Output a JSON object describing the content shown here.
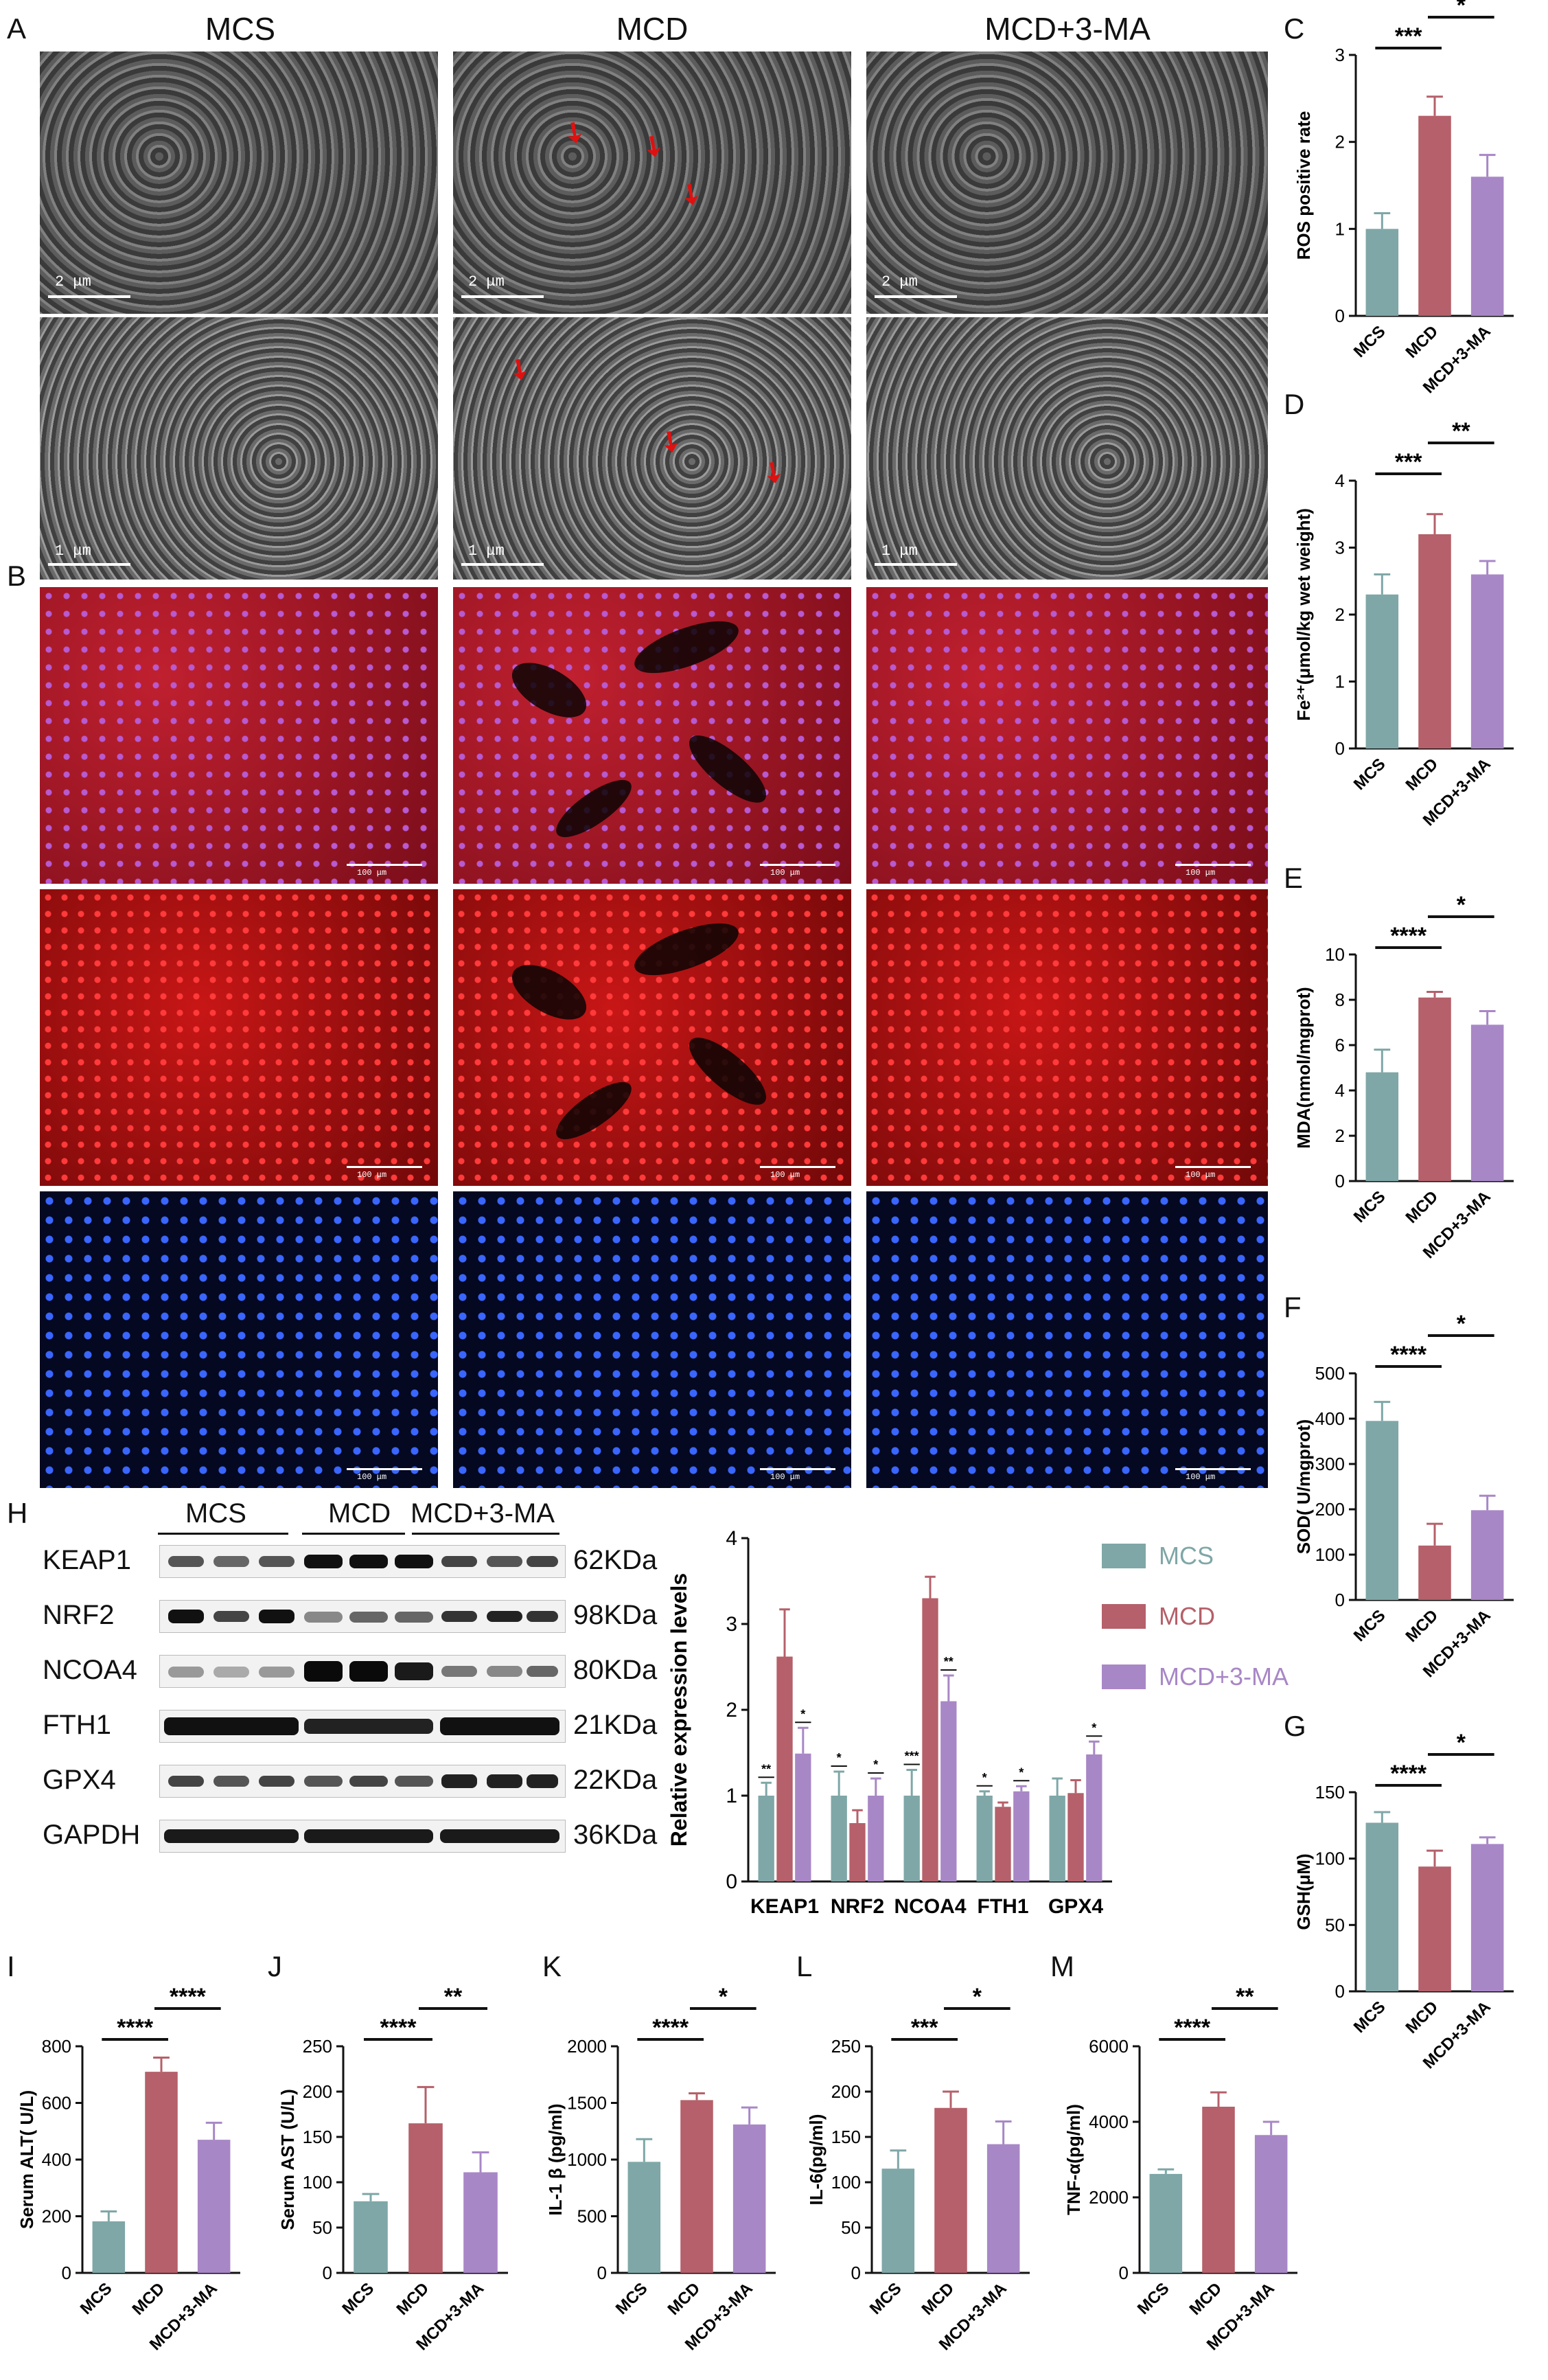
{
  "panel_letters": {
    "A": "A",
    "B": "B",
    "C": "C",
    "D": "D",
    "E": "E",
    "F": "F",
    "G": "G",
    "H": "H",
    "I": "I",
    "J": "J",
    "K": "K",
    "L": "L",
    "M": "M"
  },
  "col_headers": [
    "MCS",
    "MCD",
    "MCD+3-MA"
  ],
  "scale_labels": {
    "two_um": "2 μm",
    "one_um": "1 μm",
    "hundred_um": "100 μm"
  },
  "western": {
    "groups": [
      "MCS",
      "MCD",
      "MCD+3-MA"
    ],
    "proteins": [
      "KEAP1",
      "NRF2",
      "NCOA4",
      "FTH1",
      "GPX4",
      "GAPDH"
    ],
    "sizes": [
      "62KDa",
      "98KDa",
      "80KDa",
      "21KDa",
      "22KDa",
      "36KDa"
    ]
  },
  "colors": {
    "MCS": "#7fa7a7",
    "MCD": "#b5606a",
    "MCD_3MA": "#a887c6"
  },
  "chart_data": [
    {
      "id": "C",
      "type": "bar",
      "categories": [
        "MCS",
        "MCD",
        "MCD+3-MA"
      ],
      "values": [
        1.0,
        2.3,
        1.6
      ],
      "errors": [
        0.18,
        0.22,
        0.25
      ],
      "ylabel": "ROS positive rate",
      "ylim": [
        0,
        3
      ],
      "yticks": [
        0,
        1,
        2,
        3
      ],
      "sig": [
        {
          "from": 0,
          "to": 1,
          "label": "***"
        },
        {
          "from": 1,
          "to": 2,
          "label": "*"
        }
      ]
    },
    {
      "id": "D",
      "type": "bar",
      "categories": [
        "MCS",
        "MCD",
        "MCD+3-MA"
      ],
      "values": [
        2.3,
        3.2,
        2.6
      ],
      "errors": [
        0.3,
        0.3,
        0.2
      ],
      "ylabel": "Fe²⁺(μmol/kg wet weight)",
      "ylim": [
        0,
        4
      ],
      "yticks": [
        0,
        1,
        2,
        3,
        4
      ],
      "sig": [
        {
          "from": 0,
          "to": 1,
          "label": "***"
        },
        {
          "from": 1,
          "to": 2,
          "label": "**"
        }
      ]
    },
    {
      "id": "E",
      "type": "bar",
      "categories": [
        "MCS",
        "MCD",
        "MCD+3-MA"
      ],
      "values": [
        4.8,
        8.1,
        6.9
      ],
      "errors": [
        1.0,
        0.25,
        0.6
      ],
      "ylabel": "MDA(nmol/mgprot)",
      "ylim": [
        0,
        10
      ],
      "yticks": [
        0,
        2,
        4,
        6,
        8,
        10
      ],
      "sig": [
        {
          "from": 0,
          "to": 1,
          "label": "****"
        },
        {
          "from": 1,
          "to": 2,
          "label": "*"
        }
      ]
    },
    {
      "id": "F",
      "type": "bar",
      "categories": [
        "MCS",
        "MCD",
        "MCD+3-MA"
      ],
      "values": [
        395,
        120,
        198
      ],
      "errors": [
        42,
        48,
        32
      ],
      "ylabel": "SOD( U/mgprot)",
      "ylim": [
        0,
        500
      ],
      "yticks": [
        0,
        100,
        200,
        300,
        400,
        500
      ],
      "sig": [
        {
          "from": 0,
          "to": 1,
          "label": "****"
        },
        {
          "from": 1,
          "to": 2,
          "label": "*"
        }
      ]
    },
    {
      "id": "G",
      "type": "bar",
      "categories": [
        "MCS",
        "MCD",
        "MCD+3-MA"
      ],
      "values": [
        127,
        94,
        111
      ],
      "errors": [
        8,
        12,
        5
      ],
      "ylabel": "GSH(μM)",
      "ylim": [
        0,
        150
      ],
      "yticks": [
        0,
        50,
        100,
        150
      ],
      "sig": [
        {
          "from": 0,
          "to": 1,
          "label": "****"
        },
        {
          "from": 1,
          "to": 2,
          "label": "*"
        }
      ]
    },
    {
      "id": "H",
      "type": "bar",
      "categories": [
        "KEAP1",
        "NRF2",
        "NCOA4",
        "FTH1",
        "GPX4"
      ],
      "series": [
        {
          "name": "MCS",
          "values": [
            1.0,
            1.0,
            1.0,
            1.0,
            1.0
          ],
          "errors": [
            0.15,
            0.28,
            0.3,
            0.05,
            0.2
          ]
        },
        {
          "name": "MCD",
          "values": [
            2.62,
            0.68,
            3.3,
            0.87,
            1.03
          ],
          "errors": [
            0.55,
            0.15,
            0.25,
            0.05,
            0.15
          ]
        },
        {
          "name": "MCD+3-MA",
          "values": [
            1.49,
            1.0,
            2.1,
            1.05,
            1.48
          ],
          "errors": [
            0.3,
            0.2,
            0.3,
            0.06,
            0.15
          ]
        }
      ],
      "ylabel": "Relative expression levels",
      "ylim": [
        0,
        4
      ],
      "yticks": [
        0,
        1,
        2,
        3,
        4
      ],
      "sig": [
        {
          "cat": 0,
          "left": "**",
          "right": "*"
        },
        {
          "cat": 1,
          "left": "*",
          "right": "*"
        },
        {
          "cat": 2,
          "left": "***",
          "right": "**"
        },
        {
          "cat": 3,
          "left": "*",
          "right": "*"
        },
        {
          "cat": 4,
          "left": "",
          "right": "*"
        }
      ],
      "legend": [
        "MCS",
        "MCD",
        "MCD+3-MA"
      ],
      "legend_position": "top-right"
    },
    {
      "id": "I",
      "type": "bar",
      "categories": [
        "MCS",
        "MCD",
        "MCD+3-MA"
      ],
      "values": [
        182,
        710,
        470
      ],
      "errors": [
        35,
        50,
        60
      ],
      "ylabel": "Serum ALT( U/L)",
      "ylim": [
        0,
        800
      ],
      "yticks": [
        0,
        200,
        400,
        600,
        800
      ],
      "sig": [
        {
          "from": 0,
          "to": 1,
          "label": "****"
        },
        {
          "from": 1,
          "to": 2,
          "label": "****"
        }
      ]
    },
    {
      "id": "J",
      "type": "bar",
      "categories": [
        "MCS",
        "MCD",
        "MCD+3-MA"
      ],
      "values": [
        79,
        165,
        111
      ],
      "errors": [
        8,
        40,
        22
      ],
      "ylabel": "Serum AST (U/L)",
      "ylim": [
        0,
        250
      ],
      "yticks": [
        0,
        50,
        100,
        150,
        200,
        250
      ],
      "sig": [
        {
          "from": 0,
          "to": 1,
          "label": "****"
        },
        {
          "from": 1,
          "to": 2,
          "label": "**"
        }
      ]
    },
    {
      "id": "K",
      "type": "bar",
      "categories": [
        "MCS",
        "MCD",
        "MCD+3-MA"
      ],
      "values": [
        980,
        1525,
        1310
      ],
      "errors": [
        200,
        60,
        150
      ],
      "ylabel": "IL-1 β (pg/ml)",
      "ylim": [
        0,
        2000
      ],
      "yticks": [
        0,
        500,
        1000,
        1500,
        2000
      ],
      "sig": [
        {
          "from": 0,
          "to": 1,
          "label": "****"
        },
        {
          "from": 1,
          "to": 2,
          "label": "*"
        }
      ]
    },
    {
      "id": "L",
      "type": "bar",
      "categories": [
        "MCS",
        "MCD",
        "MCD+3-MA"
      ],
      "values": [
        115,
        182,
        142
      ],
      "errors": [
        20,
        18,
        25
      ],
      "ylabel": "IL-6(pg/ml)",
      "ylim": [
        0,
        250
      ],
      "yticks": [
        0,
        50,
        100,
        150,
        200,
        250
      ],
      "sig": [
        {
          "from": 0,
          "to": 1,
          "label": "***"
        },
        {
          "from": 1,
          "to": 2,
          "label": "*"
        }
      ]
    },
    {
      "id": "M",
      "type": "bar",
      "categories": [
        "MCS",
        "MCD",
        "MCD+3-MA"
      ],
      "values": [
        2620,
        4400,
        3650
      ],
      "errors": [
        120,
        380,
        350
      ],
      "ylabel": "TNF-α(pg/ml)",
      "ylim": [
        0,
        6000
      ],
      "yticks": [
        0,
        2000,
        4000,
        6000
      ],
      "sig": [
        {
          "from": 0,
          "to": 1,
          "label": "****"
        },
        {
          "from": 1,
          "to": 2,
          "label": "**"
        }
      ]
    }
  ]
}
